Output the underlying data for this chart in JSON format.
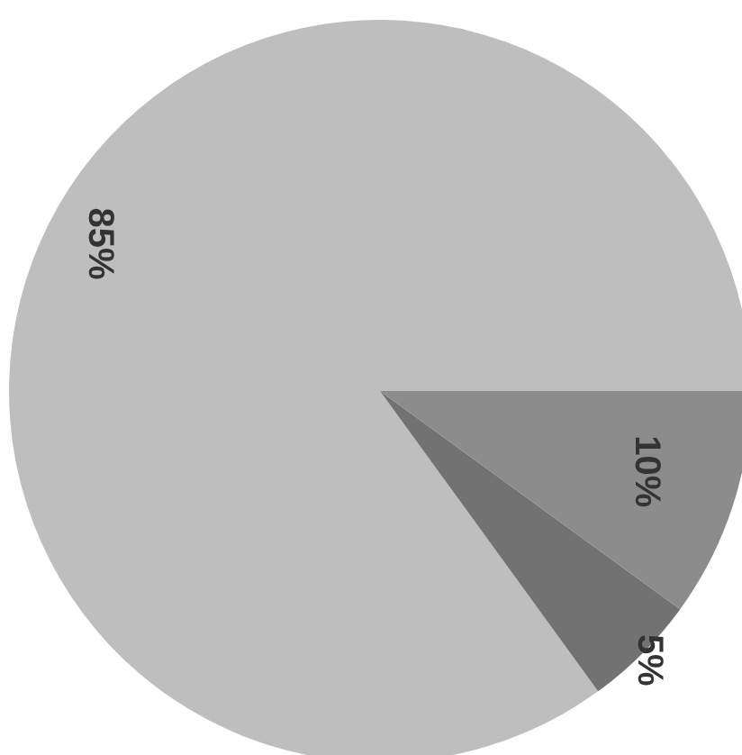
{
  "chart_data": {
    "type": "pie",
    "categories": [
      null,
      null,
      null
    ],
    "values": [
      85,
      5,
      10
    ],
    "colors": [
      "#bebebe",
      "#727272",
      "#8c8c8c"
    ],
    "value_labels": [
      "85%",
      "5%",
      "10%"
    ]
  }
}
